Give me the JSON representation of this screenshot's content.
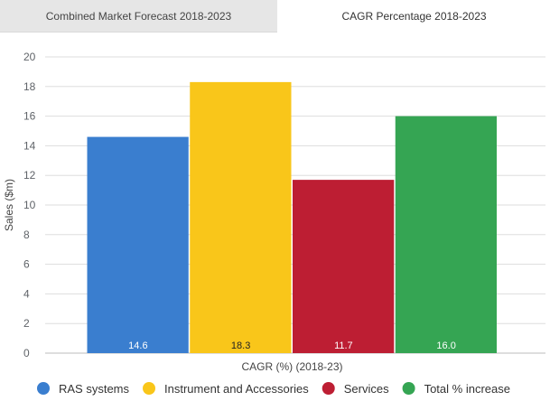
{
  "tabs": [
    {
      "label": "Combined Market Forecast 2018-2023",
      "active": false
    },
    {
      "label": "CAGR Percentage 2018-2023",
      "active": true
    }
  ],
  "chart_data": {
    "type": "bar",
    "title": "",
    "xlabel": "CAGR (%) (2018-23)",
    "ylabel": "Sales ($m)",
    "ylim": [
      0,
      20
    ],
    "yticks": [
      0,
      2,
      4,
      6,
      8,
      10,
      12,
      14,
      16,
      18,
      20
    ],
    "grid": true,
    "legend_position": "bottom",
    "series": [
      {
        "name": "RAS systems",
        "values": [
          14.6
        ],
        "data_label": "14.6",
        "color": "#3a7ecf",
        "label_color": "#ffffff"
      },
      {
        "name": "Instrument and Accessories",
        "values": [
          18.3
        ],
        "data_label": "18.3",
        "color": "#f9c61a",
        "label_color": "#222222"
      },
      {
        "name": "Services",
        "values": [
          11.7
        ],
        "data_label": "11.7",
        "color": "#bd1e33",
        "label_color": "#ffffff"
      },
      {
        "name": "Total % increase",
        "values": [
          16.0
        ],
        "data_label": "16.0",
        "color": "#35a553",
        "label_color": "#ffffff"
      }
    ]
  }
}
